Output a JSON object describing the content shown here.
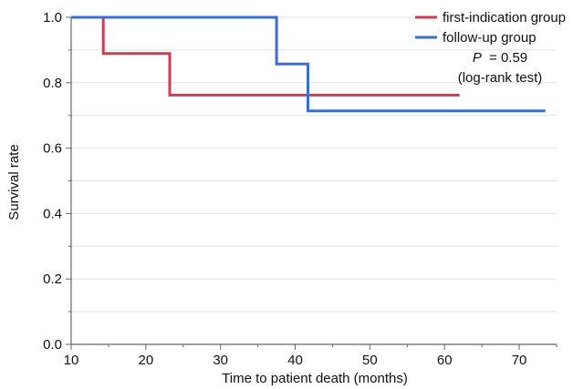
{
  "chart_data": {
    "type": "line",
    "step": true,
    "xlabel": "Time to patient death (months)",
    "ylabel": "Survival rate",
    "xlim": [
      10,
      75
    ],
    "ylim": [
      0.0,
      1.0
    ],
    "x_ticks": [
      10,
      20,
      30,
      40,
      50,
      60,
      70
    ],
    "y_ticks": [
      0.0,
      0.2,
      0.4,
      0.6,
      0.8,
      1.0
    ],
    "x_tick_labels": [
      "10",
      "20",
      "30",
      "40",
      "50",
      "60",
      "70"
    ],
    "y_tick_labels": [
      "0.0",
      "0.2",
      "0.4",
      "0.6",
      "0.8",
      "1.0"
    ],
    "grid": "horizontal",
    "legend_position": "top-right",
    "series": [
      {
        "name": "first-indication group",
        "color": "#d03a55",
        "points": [
          [
            10.0,
            1.0
          ],
          [
            14.3,
            1.0
          ],
          [
            14.3,
            0.889
          ],
          [
            23.2,
            0.889
          ],
          [
            23.2,
            0.762
          ],
          [
            62.0,
            0.762
          ]
        ]
      },
      {
        "name": "follow-up group",
        "color": "#3a6fd0",
        "points": [
          [
            10.0,
            1.0
          ],
          [
            37.5,
            1.0
          ],
          [
            37.5,
            0.857
          ],
          [
            41.7,
            0.857
          ],
          [
            41.7,
            0.714
          ],
          [
            73.5,
            0.714
          ]
        ]
      }
    ],
    "annotation": {
      "p_label": "P",
      "p_value": "= 0.59",
      "test": "(log-rank test)"
    }
  }
}
